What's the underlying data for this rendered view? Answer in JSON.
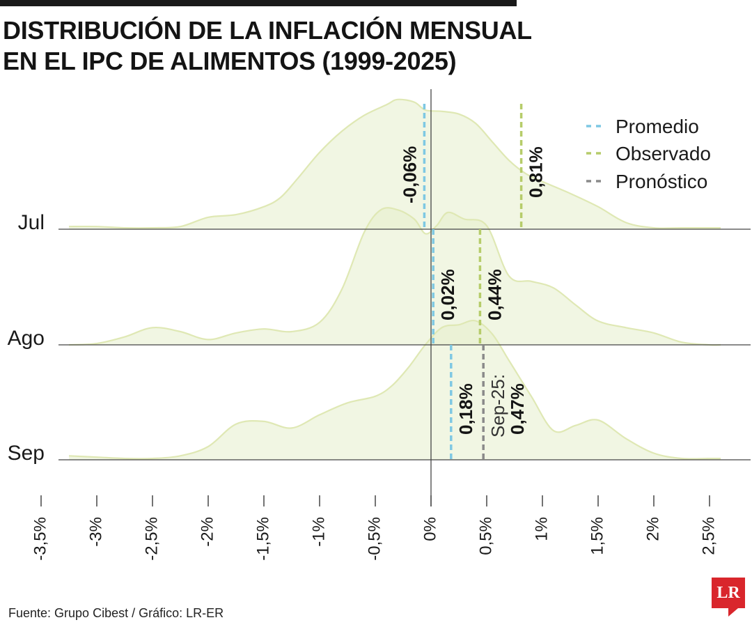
{
  "header": {
    "title_line1": "DISTRIBUCIÓN DE LA INFLACIÓN MENSUAL",
    "title_line2": "EN EL IPC DE ALIMENTOS (1999-2025)"
  },
  "footer": {
    "source": "Fuente: Grupo Cibest / Gráfico: LR-ER",
    "logo_text": "LR"
  },
  "colors": {
    "fill": "#e6efcc",
    "outline": "#dfe8b4",
    "promedio": "#7ec8e3",
    "observado": "#b6cc6a",
    "pronostico": "#8a8a8a",
    "axis": "#444444"
  },
  "chart_data": {
    "type": "ridgeline",
    "xlim": [
      -3.5,
      2.5
    ],
    "x_ticks": [
      "-3,5%",
      "-3%",
      "-2,5%",
      "-2%",
      "-1,5%",
      "-1%",
      "-0,5%",
      "0%",
      "0,5%",
      "1%",
      "1,5%",
      "2%",
      "2,5%"
    ],
    "x_tick_values": [
      -3.5,
      -3.0,
      -2.5,
      -2.0,
      -1.5,
      -1.0,
      -0.5,
      0.0,
      0.5,
      1.0,
      1.5,
      2.0,
      2.5
    ],
    "legend": {
      "position": "top-right",
      "items": [
        {
          "key": "promedio",
          "label": "Promedio"
        },
        {
          "key": "observado",
          "label": "Observado"
        },
        {
          "key": "pronostico",
          "label": "Pronóstico"
        }
      ]
    },
    "rows": [
      {
        "label": "Jul",
        "x": [
          -3.25,
          -3.0,
          -2.75,
          -2.5,
          -2.25,
          -2.0,
          -1.75,
          -1.5,
          -1.35,
          -1.2,
          -1.0,
          -0.8,
          -0.6,
          -0.4,
          -0.3,
          -0.15,
          -0.05,
          0.1,
          0.25,
          0.4,
          0.55,
          0.7,
          0.85,
          1.0,
          1.25,
          1.5,
          1.75,
          2.0,
          2.25,
          2.5,
          2.6
        ],
        "density": [
          0.02,
          0.02,
          0.01,
          0.01,
          0.02,
          0.09,
          0.11,
          0.17,
          0.24,
          0.38,
          0.58,
          0.74,
          0.86,
          0.94,
          0.98,
          0.96,
          0.9,
          0.89,
          0.87,
          0.8,
          0.66,
          0.52,
          0.42,
          0.36,
          0.27,
          0.17,
          0.05,
          0.01,
          0.01,
          0.01,
          0.01
        ],
        "markers": [
          {
            "type": "promedio",
            "value": -0.06,
            "label": "-0,06%"
          },
          {
            "type": "observado",
            "value": 0.81,
            "label": "0,81%"
          }
        ]
      },
      {
        "label": "Ago",
        "x": [
          -3.25,
          -3.0,
          -2.75,
          -2.5,
          -2.25,
          -2.0,
          -1.75,
          -1.5,
          -1.25,
          -1.0,
          -0.8,
          -0.6,
          -0.45,
          -0.3,
          -0.15,
          -0.05,
          0.05,
          0.15,
          0.3,
          0.5,
          0.7,
          0.9,
          1.1,
          1.3,
          1.5,
          1.75,
          2.0,
          2.25,
          2.5,
          2.6
        ],
        "density": [
          0.0,
          0.01,
          0.06,
          0.13,
          0.1,
          0.04,
          0.09,
          0.12,
          0.1,
          0.17,
          0.42,
          0.85,
          1.02,
          1.02,
          0.95,
          0.84,
          0.9,
          1.0,
          0.95,
          0.9,
          0.52,
          0.48,
          0.43,
          0.3,
          0.18,
          0.13,
          0.09,
          0.02,
          0.0,
          0.0
        ],
        "markers": [
          {
            "type": "promedio",
            "value": 0.02,
            "label": "0,02%"
          },
          {
            "type": "observado",
            "value": 0.44,
            "label": "0,44%"
          }
        ]
      },
      {
        "label": "Sep",
        "x": [
          -3.25,
          -3.0,
          -2.75,
          -2.5,
          -2.25,
          -2.0,
          -1.75,
          -1.5,
          -1.25,
          -1.0,
          -0.75,
          -0.5,
          -0.35,
          -0.2,
          -0.05,
          0.1,
          0.25,
          0.4,
          0.55,
          0.7,
          0.9,
          1.1,
          1.3,
          1.5,
          1.75,
          2.0,
          2.25,
          2.5,
          2.6
        ],
        "density": [
          0.03,
          0.02,
          0.01,
          0.01,
          0.03,
          0.1,
          0.27,
          0.29,
          0.24,
          0.34,
          0.43,
          0.48,
          0.56,
          0.7,
          0.87,
          1.0,
          1.02,
          1.05,
          0.95,
          0.75,
          0.48,
          0.22,
          0.26,
          0.3,
          0.16,
          0.05,
          0.01,
          0.01,
          0.01
        ],
        "markers": [
          {
            "type": "promedio",
            "value": 0.18,
            "label": "0,18%"
          },
          {
            "type": "pronostico",
            "value": 0.47,
            "label_prefix": "Sep-25:",
            "label": "0,47%"
          }
        ]
      }
    ]
  }
}
